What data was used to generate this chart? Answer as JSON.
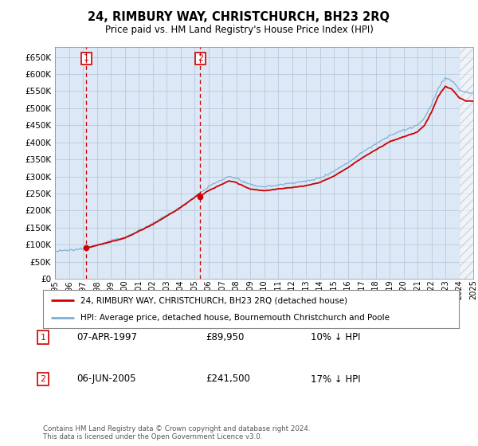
{
  "title": "24, RIMBURY WAY, CHRISTCHURCH, BH23 2RQ",
  "subtitle": "Price paid vs. HM Land Registry's House Price Index (HPI)",
  "legend_line1": "24, RIMBURY WAY, CHRISTCHURCH, BH23 2RQ (detached house)",
  "legend_line2": "HPI: Average price, detached house, Bournemouth Christchurch and Poole",
  "annotation1_date": "07-APR-1997",
  "annotation1_price": 89950,
  "annotation1_note": "10% ↓ HPI",
  "annotation2_date": "06-JUN-2005",
  "annotation2_price": 241500,
  "annotation2_note": "17% ↓ HPI",
  "footnote": "Contains HM Land Registry data © Crown copyright and database right 2024.\nThis data is licensed under the Open Government Licence v3.0.",
  "hpi_color": "#7ab0d4",
  "price_color": "#cc0000",
  "annotation_color": "#cc0000",
  "bg_color": "#dce8f5",
  "grid_color": "#b0c4d8",
  "ylim": [
    0,
    680000
  ],
  "yticks": [
    0,
    50000,
    100000,
    150000,
    200000,
    250000,
    300000,
    350000,
    400000,
    450000,
    500000,
    550000,
    600000,
    650000
  ],
  "xstart": 1995,
  "xend": 2025,
  "t1_year": 1997,
  "t1_month": 4,
  "t2_year": 2005,
  "t2_month": 6
}
